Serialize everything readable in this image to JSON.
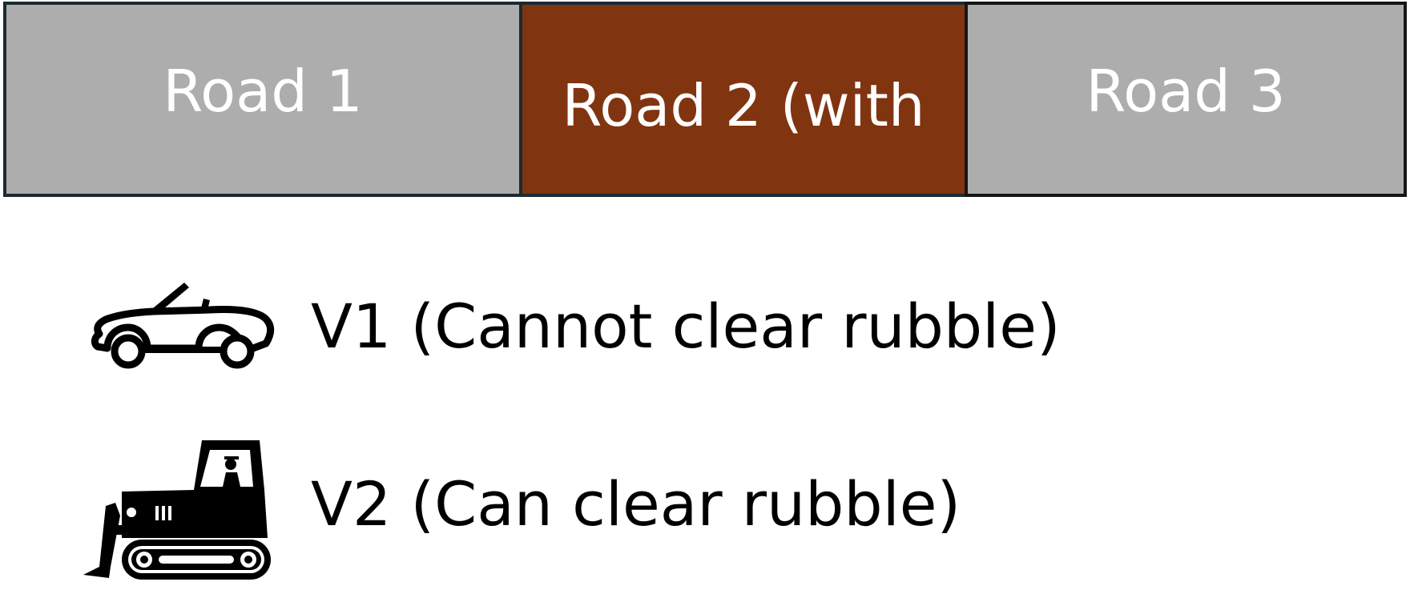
{
  "roads": [
    {
      "label": "Road 1",
      "color": "#adadad"
    },
    {
      "label": "Road 2 (with",
      "color": "#813410"
    },
    {
      "label": "Road 3",
      "color": "#adadad"
    }
  ],
  "legend": [
    {
      "icon": "car-icon",
      "label": "V1 (Cannot clear rubble)"
    },
    {
      "icon": "bulldozer-icon",
      "label": "V2 (Can clear rubble)"
    }
  ]
}
